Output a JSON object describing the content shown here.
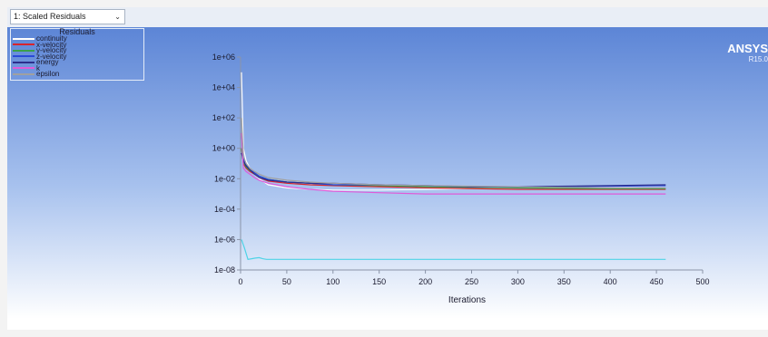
{
  "toolbar": {
    "view_select": "1: Scaled Residuals"
  },
  "brand": {
    "name": "ANSYS",
    "version": "R15.0"
  },
  "colors": {
    "accent": "#5c85d6"
  },
  "legend": {
    "title": "Residuals",
    "entries": [
      {
        "label": "continuity",
        "color": "#ffffff"
      },
      {
        "label": "x-velocity",
        "color": "#d8242c"
      },
      {
        "label": "y-velocity",
        "color": "#3aa04a"
      },
      {
        "label": "z-velocity",
        "color": "#2a49d8"
      },
      {
        "label": "energy",
        "color": "#2c2e8c"
      },
      {
        "label": "k",
        "color": "#e05ad8"
      },
      {
        "label": "epsilon",
        "color": "#a0a0a0"
      }
    ]
  },
  "chart_data": {
    "type": "line",
    "title": "",
    "xlabel": "Iterations",
    "ylabel": "",
    "yscale": "log",
    "xlim": [
      0,
      500
    ],
    "ylim": [
      1e-08,
      1000000.0
    ],
    "xticks": [
      "0",
      "50",
      "100",
      "150",
      "200",
      "250",
      "300",
      "350",
      "400",
      "450",
      "500"
    ],
    "yticks": [
      "1e-08",
      "1e-06",
      "1e-04",
      "1e-02",
      "1e+00",
      "1e+02",
      "1e+04",
      "1e+06"
    ],
    "grid": false,
    "legend_position": "top-left",
    "series": [
      {
        "name": "continuity",
        "color": "#ffffff",
        "x": [
          1,
          3,
          6,
          10,
          15,
          20,
          30,
          50,
          75,
          100,
          150,
          200,
          300,
          400,
          460
        ],
        "y": [
          100000.0,
          1,
          0.15,
          0.05,
          0.02,
          0.01,
          0.004,
          0.0025,
          0.002,
          0.0018,
          0.0018,
          0.002,
          0.0025,
          0.003,
          0.0035
        ]
      },
      {
        "name": "x-velocity",
        "color": "#d8242c",
        "x": [
          1,
          3,
          6,
          10,
          15,
          20,
          30,
          50,
          75,
          100,
          150,
          200,
          300,
          400,
          460
        ],
        "y": [
          1,
          0.1,
          0.05,
          0.03,
          0.02,
          0.012,
          0.007,
          0.005,
          0.004,
          0.0035,
          0.003,
          0.0025,
          0.002,
          0.002,
          0.002
        ]
      },
      {
        "name": "y-velocity",
        "color": "#3aa04a",
        "x": [
          1,
          3,
          6,
          10,
          15,
          20,
          30,
          50,
          75,
          100,
          150,
          200,
          300,
          400,
          460
        ],
        "y": [
          1,
          0.12,
          0.06,
          0.035,
          0.025,
          0.015,
          0.009,
          0.006,
          0.005,
          0.004,
          0.0035,
          0.003,
          0.0025,
          0.0022,
          0.0022
        ]
      },
      {
        "name": "z-velocity",
        "color": "#2a49d8",
        "x": [
          1,
          3,
          6,
          10,
          15,
          20,
          30,
          50,
          75,
          100,
          150,
          200,
          250,
          300,
          400,
          460
        ],
        "y": [
          10,
          0.2,
          0.08,
          0.04,
          0.025,
          0.015,
          0.009,
          0.006,
          0.005,
          0.004,
          0.004,
          0.0035,
          0.003,
          0.003,
          0.0032,
          0.0035
        ]
      },
      {
        "name": "energy",
        "color": "#2c2e8c",
        "x": [
          1,
          3,
          6,
          10,
          15,
          20,
          30,
          50,
          75,
          100,
          150,
          200,
          250,
          300,
          400,
          460
        ],
        "y": [
          0.5,
          0.15,
          0.07,
          0.04,
          0.02,
          0.012,
          0.008,
          0.006,
          0.005,
          0.005,
          0.004,
          0.0035,
          0.003,
          0.003,
          0.0035,
          0.004
        ]
      },
      {
        "name": "k",
        "color": "#e05ad8",
        "x": [
          1,
          3,
          6,
          10,
          15,
          20,
          30,
          50,
          75,
          100,
          150,
          200,
          300,
          400,
          460
        ],
        "y": [
          10,
          0.05,
          0.03,
          0.02,
          0.012,
          0.008,
          0.005,
          0.003,
          0.002,
          0.0015,
          0.0012,
          0.001,
          0.001,
          0.001,
          0.001
        ]
      },
      {
        "name": "epsilon",
        "color": "#a0a0a0",
        "x": [
          1,
          3,
          6,
          10,
          15,
          20,
          30,
          50,
          75,
          100,
          150,
          200,
          300,
          400,
          460
        ],
        "y": [
          100,
          0.3,
          0.1,
          0.05,
          0.03,
          0.02,
          0.012,
          0.008,
          0.006,
          0.005,
          0.004,
          0.0035,
          0.003,
          0.0025,
          0.0025
        ]
      },
      {
        "name": "",
        "color": "#4fd3e6",
        "x": [
          1,
          4,
          8,
          12,
          16,
          20,
          24,
          28,
          35,
          50,
          100,
          200,
          300,
          400,
          460
        ],
        "y": [
          1e-06,
          3e-07,
          5e-08,
          5.5e-08,
          6e-08,
          6.5e-08,
          5.5e-08,
          5e-08,
          5e-08,
          5e-08,
          5e-08,
          5e-08,
          5e-08,
          5e-08,
          5e-08
        ]
      }
    ]
  }
}
